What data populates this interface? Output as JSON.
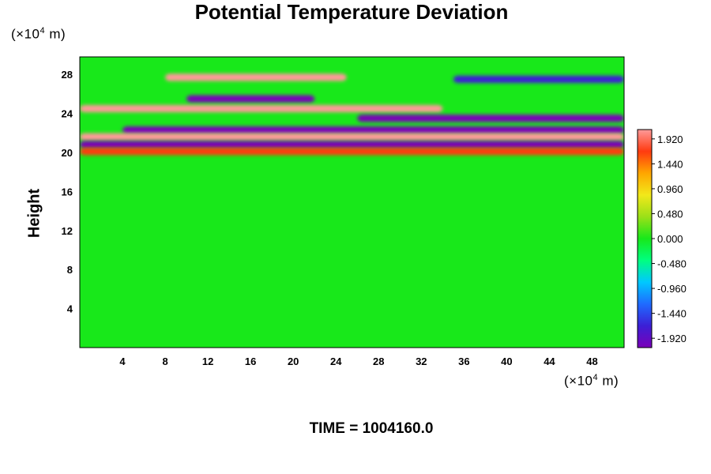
{
  "chart_data": {
    "type": "heatmap",
    "title": "Potential Temperature Deviation",
    "xlabel": "",
    "ylabel": "Height",
    "x_unit": {
      "prefix": "(×10",
      "exp": "4",
      "suffix": " m)"
    },
    "y_unit": {
      "prefix": "(×10",
      "exp": "4",
      "suffix": " m)"
    },
    "xlim": [
      0,
      51
    ],
    "ylim": [
      0,
      29.8
    ],
    "x_ticks": [
      4,
      8,
      12,
      16,
      20,
      24,
      28,
      32,
      36,
      40,
      44,
      48
    ],
    "y_ticks": [
      4,
      8,
      12,
      16,
      20,
      24,
      28
    ],
    "colorbar": {
      "range": [
        -2.1,
        2.1
      ],
      "ticks": [
        "1.920",
        "1.440",
        "0.960",
        "0.480",
        "0.000",
        "-0.480",
        "-0.960",
        "-1.440",
        "-1.920"
      ],
      "tick_values": [
        1.92,
        1.44,
        0.96,
        0.48,
        0.0,
        -0.48,
        -0.96,
        -1.44,
        -1.92
      ],
      "colors": [
        "#7a00b8",
        "#3c1fd6",
        "#1f6bff",
        "#00c8ff",
        "#00ff80",
        "#18e81a",
        "#9be018",
        "#f2e81a",
        "#ffa600",
        "#ff3a10",
        "#ff9a9a"
      ]
    },
    "footer": "TIME = 1004160.0",
    "bands": [
      {
        "y": 27.7,
        "x_from": 8,
        "x_to": 25,
        "value": 1.9
      },
      {
        "y": 27.5,
        "x_from": 35,
        "x_to": 51,
        "value": -1.6
      },
      {
        "y": 25.5,
        "x_from": 10,
        "x_to": 22,
        "value": -1.9
      },
      {
        "y": 24.5,
        "x_from": 0,
        "x_to": 34,
        "value": 2.0
      },
      {
        "y": 23.5,
        "x_from": 26,
        "x_to": 51,
        "value": -2.0
      },
      {
        "y": 22.3,
        "x_from": 4,
        "x_to": 51,
        "value": -2.1
      },
      {
        "y": 21.6,
        "x_from": 0,
        "x_to": 51,
        "value": 2.1
      },
      {
        "y": 20.8,
        "x_from": 0,
        "x_to": 51,
        "value": -2.0
      },
      {
        "y": 20.1,
        "x_from": 0,
        "x_to": 51,
        "value": 1.6
      }
    ]
  }
}
